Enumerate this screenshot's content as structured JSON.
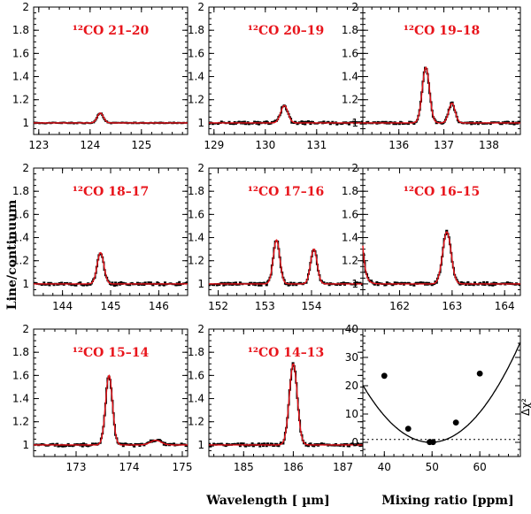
{
  "chart_data": [
    {
      "type": "line",
      "label": "¹²CO 21–20",
      "xlim": [
        122.9,
        125.9
      ],
      "ylim": [
        0.9,
        2.0
      ],
      "xticks": [
        123,
        124,
        125
      ],
      "yticks": [
        1,
        1.2,
        1.4,
        1.6,
        1.8,
        2
      ],
      "peaks": [
        {
          "x": 124.2,
          "height": 0.085,
          "width": 0.06
        }
      ],
      "noise": 0.004
    },
    {
      "type": "line",
      "label": "¹²CO 20–19",
      "xlim": [
        128.9,
        131.9
      ],
      "ylim": [
        0.9,
        2.0
      ],
      "xticks": [
        129,
        130,
        131
      ],
      "yticks": [
        1,
        1.2,
        1.4,
        1.6,
        1.8,
        2
      ],
      "peaks": [
        {
          "x": 130.37,
          "height": 0.15,
          "width": 0.07
        }
      ],
      "noise": 0.012
    },
    {
      "type": "line",
      "label": "¹²CO 19–18",
      "xlim": [
        135.2,
        138.7
      ],
      "ylim": [
        0.9,
        2.0
      ],
      "xticks": [
        136,
        137,
        138
      ],
      "yticks": [
        1,
        1.2,
        1.4,
        1.6,
        1.8,
        2
      ],
      "peaks": [
        {
          "x": 136.6,
          "height": 0.48,
          "width": 0.08
        },
        {
          "x": 137.18,
          "height": 0.17,
          "width": 0.07
        }
      ],
      "noise": 0.01
    },
    {
      "type": "line",
      "label": "¹²CO 18–17",
      "xlim": [
        143.4,
        146.6
      ],
      "ylim": [
        0.9,
        2.0
      ],
      "xticks": [
        144,
        145,
        146
      ],
      "yticks": [
        1,
        1.2,
        1.4,
        1.6,
        1.8,
        2
      ],
      "peaks": [
        {
          "x": 144.79,
          "height": 0.27,
          "width": 0.07
        }
      ],
      "noise": 0.012
    },
    {
      "type": "line",
      "label": "¹²CO 17–16",
      "xlim": [
        151.8,
        155.1
      ],
      "ylim": [
        0.9,
        2.0
      ],
      "xticks": [
        152,
        153,
        154
      ],
      "yticks": [
        1,
        1.2,
        1.4,
        1.6,
        1.8,
        2
      ],
      "peaks": [
        {
          "x": 153.25,
          "height": 0.38,
          "width": 0.07
        },
        {
          "x": 154.05,
          "height": 0.3,
          "width": 0.07
        }
      ],
      "noise": 0.012
    },
    {
      "type": "line",
      "label": "¹²CO 16–15",
      "xlim": [
        161.3,
        164.3
      ],
      "ylim": [
        0.9,
        2.0
      ],
      "xticks": [
        162,
        163,
        164
      ],
      "yticks": [
        1,
        1.2,
        1.4,
        1.6,
        1.8,
        2
      ],
      "peaks": [
        {
          "x": 162.9,
          "height": 0.45,
          "width": 0.08
        }
      ],
      "edge_left": 0.33,
      "noise": 0.012
    },
    {
      "type": "line",
      "label": "¹²CO 15–14",
      "xlim": [
        172.2,
        175.1
      ],
      "ylim": [
        0.9,
        2.0
      ],
      "xticks": [
        173,
        174,
        175
      ],
      "yticks": [
        1,
        1.2,
        1.4,
        1.6,
        1.8,
        2
      ],
      "peaks": [
        {
          "x": 173.62,
          "height": 0.6,
          "width": 0.065
        },
        {
          "x": 174.5,
          "height": 0.04,
          "width": 0.1
        }
      ],
      "noise": 0.012
    },
    {
      "type": "line",
      "label": "¹²CO 14–13",
      "xlim": [
        184.3,
        187.4
      ],
      "ylim": [
        0.9,
        2.0
      ],
      "xticks": [
        185,
        186,
        187
      ],
      "yticks": [
        1,
        1.2,
        1.4,
        1.6,
        1.8,
        2
      ],
      "peaks": [
        {
          "x": 186.0,
          "height": 0.7,
          "width": 0.08
        }
      ],
      "noise": 0.012
    },
    {
      "type": "scatter",
      "label": "",
      "xlabel": "Mixing ratio [ppm]",
      "ylabel": "Δχ²",
      "xlim": [
        35.5,
        68.5
      ],
      "ylim": [
        -5,
        40
      ],
      "xticks": [
        40,
        50,
        60
      ],
      "yticks": [
        0,
        10,
        20,
        30,
        40
      ],
      "points": [
        {
          "x": 40,
          "y": 23.5
        },
        {
          "x": 45,
          "y": 4.8
        },
        {
          "x": 49.5,
          "y": 0.1
        },
        {
          "x": 50.2,
          "y": 0.1
        },
        {
          "x": 55,
          "y": 7.0
        },
        {
          "x": 60,
          "y": 24.3
        }
      ],
      "fit": {
        "a": 0.1,
        "x0": 49.7,
        "c": 0
      },
      "hline": 1
    }
  ],
  "axes": {
    "ylabel": "Line/continuum",
    "xlabel_main": "Wavelength [ µm]",
    "xlabel_right": "Mixing ratio [ppm]"
  },
  "colors": {
    "observed": "#000000",
    "model": "#e8141b",
    "label": "#e8141b"
  }
}
